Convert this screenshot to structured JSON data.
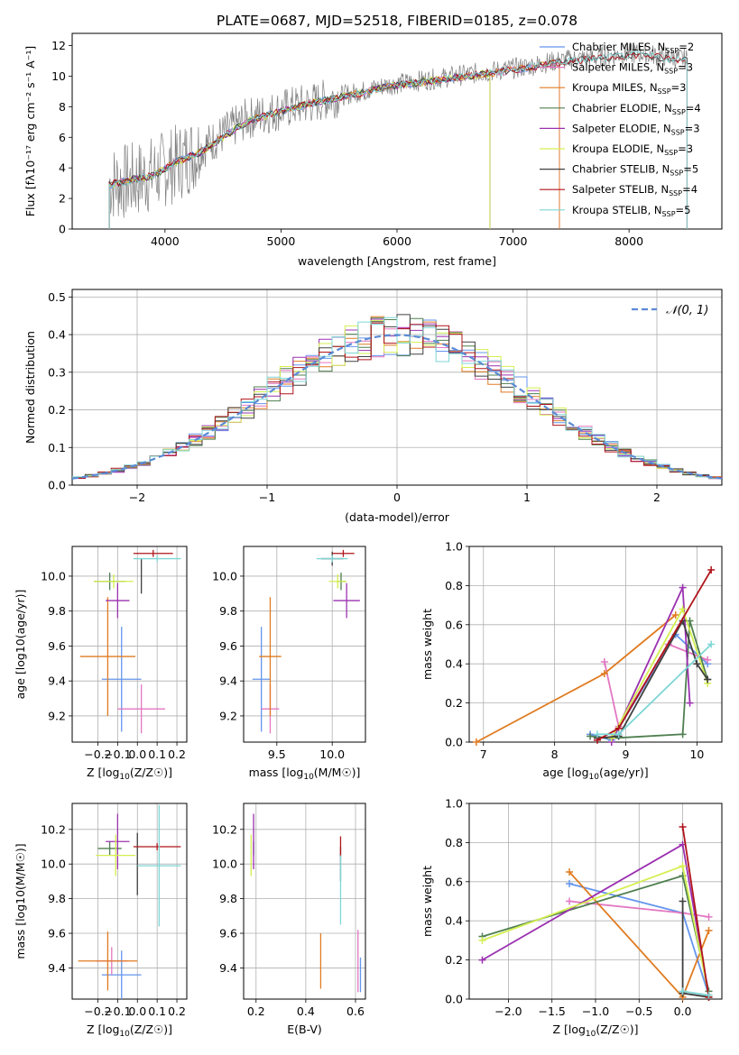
{
  "figure": {
    "title": "PLATE=0687, MJD=52518, FIBERID=0185, z=0.078"
  },
  "chart_data": [
    {
      "id": "spectrum",
      "type": "line",
      "title": "PLATE=0687, MJD=52518, FIBERID=0185, z=0.078",
      "xlabel": "wavelength [Angstrom, rest frame]",
      "ylabel": "Flux [fλ10⁻¹⁷ erg cm⁻² s⁻¹ A⁻¹]",
      "xlim": [
        3200,
        8800
      ],
      "ylim": [
        0,
        12.8
      ],
      "xticks": [
        4000,
        5000,
        6000,
        7000,
        8000
      ],
      "yticks": [
        0,
        2,
        4,
        6,
        8,
        10,
        12
      ],
      "grid": false,
      "legend_position": "top-right",
      "observed": {
        "color": "#808080",
        "x": [
          3520,
          3700,
          3900,
          4100,
          4300,
          4500,
          4700,
          4900,
          5100,
          5300,
          5500,
          5700,
          5900,
          6100,
          6300,
          6500,
          6700,
          6900,
          7100,
          7300,
          7500,
          7700,
          7900,
          8100,
          8300,
          8500
        ],
        "y": [
          3.0,
          3.1,
          3.6,
          4.3,
          5.2,
          6.2,
          7.2,
          7.6,
          8.0,
          8.3,
          8.7,
          9.0,
          9.4,
          9.6,
          9.8,
          10.0,
          10.2,
          10.4,
          10.6,
          10.9,
          11.1,
          11.2,
          11.4,
          11.5,
          11.3,
          11.1
        ]
      },
      "model_x": [
        3520,
        3700,
        3900,
        4100,
        4300,
        4500,
        4700,
        4900,
        5100,
        5300,
        5500,
        5700,
        5900,
        6100,
        6300,
        6500,
        6700,
        6900,
        7100,
        7300,
        7500,
        7700,
        7900,
        8100,
        8300,
        8500
      ],
      "model_y": [
        2.9,
        3.2,
        3.5,
        4.4,
        5.0,
        6.0,
        7.0,
        7.5,
        7.9,
        8.3,
        8.6,
        8.9,
        9.3,
        9.5,
        9.7,
        9.9,
        10.1,
        10.3,
        10.5,
        10.8,
        11.0,
        11.1,
        11.3,
        11.4,
        11.2,
        11.0
      ],
      "series": [
        {
          "name": "Chabrier MILES, N_SSP=2",
          "label_main": "Chabrier MILES, N",
          "label_sub": "SSP",
          "label_tail": "=2",
          "color": "#6495ed",
          "x_end": 7400
        },
        {
          "name": "Salpeter MILES, N_SSP=3",
          "label_main": "Salpeter MILES, N",
          "label_sub": "SSP",
          "label_tail": "=3",
          "color": "#e377c2",
          "x_end": 7400
        },
        {
          "name": "Kroupa MILES, N_SSP=3",
          "label_main": "Kroupa MILES, N",
          "label_sub": "SSP",
          "label_tail": "=3",
          "color": "#e07b20",
          "x_end": 7400
        },
        {
          "name": "Chabrier ELODIE, N_SSP=4",
          "label_main": "Chabrier ELODIE, N",
          "label_sub": "SSP",
          "label_tail": "=4",
          "color": "#4f7f4f",
          "x_end": 6800
        },
        {
          "name": "Salpeter ELODIE, N_SSP=3",
          "label_main": "Salpeter ELODIE, N",
          "label_sub": "SSP",
          "label_tail": "=3",
          "color": "#9b30b0",
          "x_end": 6800
        },
        {
          "name": "Kroupa ELODIE, N_SSP=3",
          "label_main": "Kroupa ELODIE, N",
          "label_sub": "SSP",
          "label_tail": "=3",
          "color": "#d4ef50",
          "x_end": 6800
        },
        {
          "name": "Chabrier STELIB, N_SSP=5",
          "label_main": "Chabrier STELIB, N",
          "label_sub": "SSP",
          "label_tail": "=5",
          "color": "#404040",
          "x_end": 8500
        },
        {
          "name": "Salpeter STELIB, N_SSP=4",
          "label_main": "Salpeter STELIB, N",
          "label_sub": "SSP",
          "label_tail": "=4",
          "color": "#b0141b",
          "x_end": 8500
        },
        {
          "name": "Kroupa STELIB, N_SSP=5",
          "label_main": "Kroupa STELIB, N",
          "label_sub": "SSP",
          "label_tail": "=5",
          "color": "#7fd6d6",
          "x_end": 8500
        }
      ]
    },
    {
      "id": "residuals",
      "type": "line",
      "xlabel": "(data-model)/error",
      "ylabel": "Normed distribution",
      "xlim": [
        -2.5,
        2.5
      ],
      "ylim": [
        0,
        0.52
      ],
      "xticks": [
        -2,
        -1,
        0,
        1,
        2
      ],
      "yticks": [
        0.0,
        0.1,
        0.2,
        0.3,
        0.4,
        0.5
      ],
      "grid": true,
      "legend_position": "top-right",
      "normal_curve": {
        "name": "N(0,1)",
        "label": "𝒩(0, 1)",
        "color": "#5b8bd6"
      },
      "bin_width": 0.1,
      "bin_start": -2.5,
      "hist_colors": [
        "#6495ed",
        "#e377c2",
        "#e07b20",
        "#4f7f4f",
        "#9b30b0",
        "#d4ef50",
        "#404040",
        "#b0141b",
        "#7fd6d6"
      ]
    },
    {
      "id": "age_vs_Z",
      "type": "scatter",
      "xlabel_main": "Z [log",
      "xlabel_sub": "10",
      "xlabel_tail": "(Z/Z☉)]",
      "ylabel": "age  [log10(age/yr)]",
      "xlim": [
        -0.33,
        0.25
      ],
      "ylim": [
        9.05,
        10.17
      ],
      "xticks": [
        -0.2,
        -0.1,
        0.0,
        0.1,
        0.2
      ],
      "yticks": [
        9.2,
        9.4,
        9.6,
        9.8,
        10.0
      ],
      "points": [
        {
          "x": -0.08,
          "y": 9.41,
          "xerr": 0.1,
          "yerr": 0.3,
          "color": "#6495ed"
        },
        {
          "x": 0.02,
          "y": 9.24,
          "xerr": 0.12,
          "yerr": 0.14,
          "color": "#e377c2"
        },
        {
          "x": -0.15,
          "y": 9.54,
          "xerr": 0.14,
          "yerr": 0.34,
          "color": "#e07b20"
        },
        {
          "x": -0.14,
          "y": 9.97,
          "xerr": 0.08,
          "yerr": 0.05,
          "color": "#4f7f4f"
        },
        {
          "x": -0.1,
          "y": 9.86,
          "xerr": 0.06,
          "yerr": 0.1,
          "color": "#9b30b0"
        },
        {
          "x": -0.12,
          "y": 9.97,
          "xerr": 0.1,
          "yerr": 0.04,
          "color": "#d4ef50"
        },
        {
          "x": 0.02,
          "y": 10.0,
          "xerr": 0.0,
          "yerr": 0.1,
          "color": "#404040"
        },
        {
          "x": 0.08,
          "y": 10.13,
          "xerr": 0.1,
          "yerr": 0.02,
          "color": "#b0141b"
        },
        {
          "x": 0.1,
          "y": 10.1,
          "xerr": 0.12,
          "yerr": 0.02,
          "color": "#7fd6d6"
        }
      ]
    },
    {
      "id": "age_vs_mass",
      "type": "scatter",
      "xlabel_main": "mass [log",
      "xlabel_sub": "10",
      "xlabel_tail": "(M/M☉)]",
      "xlim": [
        9.2,
        10.3
      ],
      "ylim": [
        9.05,
        10.17
      ],
      "xticks": [
        9.5,
        10.0
      ],
      "yticks": [
        9.2,
        9.4,
        9.6,
        9.8,
        10.0
      ],
      "points": [
        {
          "x": 9.36,
          "y": 9.41,
          "xerr": 0.08,
          "yerr": 0.3,
          "color": "#6495ed"
        },
        {
          "x": 9.44,
          "y": 9.24,
          "xerr": 0.08,
          "yerr": 0.14,
          "color": "#e377c2"
        },
        {
          "x": 9.44,
          "y": 9.54,
          "xerr": 0.1,
          "yerr": 0.34,
          "color": "#e07b20"
        },
        {
          "x": 10.08,
          "y": 9.97,
          "xerr": 0.04,
          "yerr": 0.05,
          "color": "#4f7f4f"
        },
        {
          "x": 10.13,
          "y": 9.86,
          "xerr": 0.12,
          "yerr": 0.1,
          "color": "#9b30b0"
        },
        {
          "x": 10.05,
          "y": 9.97,
          "xerr": 0.08,
          "yerr": 0.04,
          "color": "#d4ef50"
        },
        {
          "x": 10.0,
          "y": 10.1,
          "xerr": 0.1,
          "yerr": 0.04,
          "color": "#404040"
        },
        {
          "x": 10.1,
          "y": 10.13,
          "xerr": 0.1,
          "yerr": 0.02,
          "color": "#b0141b"
        },
        {
          "x": 10.0,
          "y": 10.1,
          "xerr": 0.14,
          "yerr": 0.02,
          "color": "#7fd6d6"
        }
      ]
    },
    {
      "id": "weight_vs_age",
      "type": "line",
      "xlabel_main": "age  [log",
      "xlabel_sub": "10",
      "xlabel_tail": "(age/yr)]",
      "ylabel": "mass weight",
      "xlim": [
        6.8,
        10.35
      ],
      "ylim": [
        0,
        1.0
      ],
      "xticks": [
        7,
        8,
        9,
        10
      ],
      "yticks": [
        0.0,
        0.2,
        0.4,
        0.6,
        0.8,
        1.0
      ],
      "grid": true,
      "series": [
        {
          "color": "#6495ed",
          "x": [
            8.5,
            8.8,
            9.7,
            10.15
          ],
          "y": [
            0.04,
            0.01,
            0.55,
            0.4
          ]
        },
        {
          "color": "#e377c2",
          "x": [
            8.7,
            8.9,
            9.6,
            10.15
          ],
          "y": [
            0.41,
            0.08,
            0.5,
            0.42
          ]
        },
        {
          "color": "#e07b20",
          "x": [
            6.9,
            8.7,
            9.7
          ],
          "y": [
            0.0,
            0.35,
            0.65
          ]
        },
        {
          "color": "#4f7f4f",
          "x": [
            8.5,
            8.8,
            9.8,
            9.9,
            10.15
          ],
          "y": [
            0.03,
            0.02,
            0.04,
            0.62,
            0.32
          ]
        },
        {
          "color": "#9b30b0",
          "x": [
            8.8,
            9.8,
            9.9
          ],
          "y": [
            0.0,
            0.79,
            0.2
          ]
        },
        {
          "color": "#d4ef50",
          "x": [
            8.8,
            9.8,
            10.15
          ],
          "y": [
            0.02,
            0.68,
            0.3
          ]
        },
        {
          "color": "#404040",
          "x": [
            8.6,
            8.9,
            9.8,
            10.0,
            10.15
          ],
          "y": [
            0.02,
            0.03,
            0.62,
            0.4,
            0.32
          ]
        },
        {
          "color": "#b0141b",
          "x": [
            8.6,
            8.9,
            10.2
          ],
          "y": [
            0.01,
            0.07,
            0.88
          ]
        },
        {
          "color": "#7fd6d6",
          "x": [
            8.6,
            8.9,
            10.2
          ],
          "y": [
            0.04,
            0.04,
            0.5
          ]
        }
      ]
    },
    {
      "id": "mass_vs_Z",
      "type": "scatter",
      "xlabel_main": "Z [log",
      "xlabel_sub": "10",
      "xlabel_tail": "(Z/Z☉)]",
      "ylabel": "mass [log10(M/M☉)]",
      "xlim": [
        -0.33,
        0.25
      ],
      "ylim": [
        9.22,
        10.35
      ],
      "xticks": [
        -0.2,
        -0.1,
        0.0,
        0.1,
        0.2
      ],
      "yticks": [
        9.4,
        9.6,
        9.8,
        10.0,
        10.2
      ],
      "points": [
        {
          "x": -0.08,
          "y": 9.36,
          "xerr": 0.1,
          "yerr": 0.14,
          "color": "#6495ed"
        },
        {
          "x": -0.13,
          "y": 9.44,
          "xerr": 0.08,
          "yerr": 0.08,
          "color": "#e377c2"
        },
        {
          "x": -0.15,
          "y": 9.44,
          "xerr": 0.15,
          "yerr": 0.17,
          "color": "#e07b20"
        },
        {
          "x": -0.14,
          "y": 10.09,
          "xerr": 0.06,
          "yerr": 0.04,
          "color": "#4f7f4f"
        },
        {
          "x": -0.1,
          "y": 10.13,
          "xerr": 0.06,
          "yerr": 0.16,
          "color": "#9b30b0"
        },
        {
          "x": -0.11,
          "y": 10.05,
          "xerr": 0.1,
          "yerr": 0.12,
          "color": "#d4ef50"
        },
        {
          "x": 0.0,
          "y": 10.0,
          "xerr": 0.0,
          "yerr": 0.18,
          "color": "#404040"
        },
        {
          "x": 0.1,
          "y": 10.1,
          "xerr": 0.12,
          "yerr": 0.02,
          "color": "#b0141b"
        },
        {
          "x": 0.11,
          "y": 9.99,
          "xerr": 0.11,
          "yerr": 0.35,
          "color": "#7fd6d6"
        }
      ]
    },
    {
      "id": "mass_vs_ebv",
      "type": "scatter",
      "xlabel": "E(B-V)",
      "xlim": [
        0.15,
        0.64
      ],
      "ylim": [
        9.22,
        10.35
      ],
      "xticks": [
        0.2,
        0.4,
        0.6
      ],
      "yticks": [
        9.4,
        9.6,
        9.8,
        10.0,
        10.2
      ],
      "points": [
        {
          "x": 0.62,
          "y": 9.36,
          "yerr": 0.1,
          "color": "#6495ed"
        },
        {
          "x": 0.61,
          "y": 9.44,
          "yerr": 0.18,
          "color": "#e377c2"
        },
        {
          "x": 0.46,
          "y": 9.44,
          "yerr": 0.16,
          "color": "#e07b20"
        },
        {
          "x": 0.19,
          "y": 10.09,
          "yerr": 0.04,
          "color": "#4f7f4f"
        },
        {
          "x": 0.19,
          "y": 10.13,
          "yerr": 0.16,
          "color": "#9b30b0"
        },
        {
          "x": 0.18,
          "y": 10.05,
          "yerr": 0.12,
          "color": "#d4ef50"
        },
        {
          "x": 0.54,
          "y": 10.0,
          "yerr": 0.1,
          "color": "#404040"
        },
        {
          "x": 0.54,
          "y": 10.1,
          "yerr": 0.06,
          "color": "#b0141b"
        },
        {
          "x": 0.54,
          "y": 9.85,
          "yerr": 0.2,
          "color": "#7fd6d6"
        }
      ]
    },
    {
      "id": "weight_vs_Z",
      "type": "line",
      "xlabel_main": "Z [log",
      "xlabel_sub": "10",
      "xlabel_tail": "(Z/Z☉)]",
      "ylabel": "mass weight",
      "xlim": [
        -2.45,
        0.45
      ],
      "ylim": [
        0,
        1.0
      ],
      "xticks": [
        -2.0,
        -1.5,
        -1.0,
        -0.5,
        0.0
      ],
      "yticks": [
        0.0,
        0.2,
        0.4,
        0.6,
        0.8,
        1.0
      ],
      "grid": true,
      "series": [
        {
          "color": "#6495ed",
          "x": [
            -1.3,
            0.0,
            0.3
          ],
          "y": [
            0.59,
            0.44,
            0.02
          ]
        },
        {
          "color": "#e377c2",
          "x": [
            -1.3,
            0.0,
            0.3
          ],
          "y": [
            0.5,
            0.44,
            0.42
          ]
        },
        {
          "color": "#e07b20",
          "x": [
            -1.3,
            0.0,
            0.3
          ],
          "y": [
            0.65,
            0.01,
            0.35
          ]
        },
        {
          "color": "#4f7f4f",
          "x": [
            -2.3,
            0.0,
            0.3
          ],
          "y": [
            0.32,
            0.63,
            0.04
          ]
        },
        {
          "color": "#9b30b0",
          "x": [
            -2.3,
            0.0,
            0.3
          ],
          "y": [
            0.2,
            0.79,
            0.02
          ]
        },
        {
          "color": "#d4ef50",
          "x": [
            -2.3,
            0.0,
            0.3
          ],
          "y": [
            0.3,
            0.68,
            0.02
          ]
        },
        {
          "color": "#404040",
          "x": [
            0.0,
            0.0,
            0.3
          ],
          "y": [
            0.5,
            0.03,
            0.01
          ]
        },
        {
          "color": "#b0141b",
          "x": [
            0.0,
            0.3
          ],
          "y": [
            0.88,
            0.01
          ]
        },
        {
          "color": "#7fd6d6",
          "x": [
            0.0,
            0.3
          ],
          "y": [
            0.04,
            0.02
          ]
        }
      ]
    }
  ]
}
